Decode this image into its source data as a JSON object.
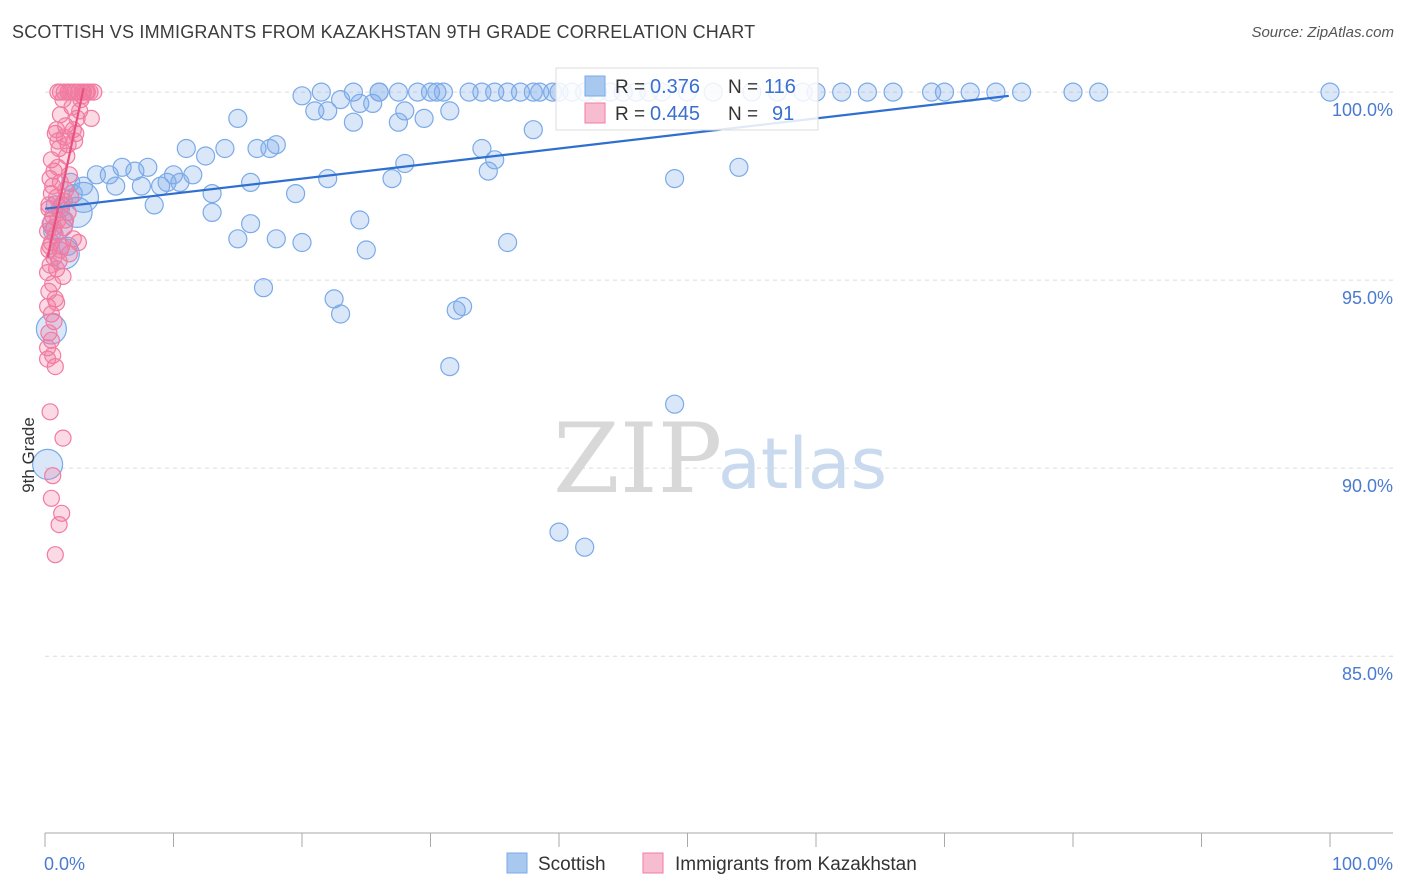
{
  "title": "SCOTTISH VS IMMIGRANTS FROM KAZAKHSTAN 9TH GRADE CORRELATION CHART",
  "source": "Source: ZipAtlas.com",
  "watermark": {
    "zip": "ZIP",
    "atlas": "atlas"
  },
  "chart_data": {
    "type": "scatter",
    "title": "SCOTTISH VS IMMIGRANTS FROM KAZAKHSTAN 9TH GRADE CORRELATION CHART",
    "xlabel": "",
    "ylabel": "9th Grade",
    "xlim": [
      0,
      100
    ],
    "ylim": [
      80.3,
      100.8
    ],
    "x_tick_labels": {
      "left": "0.0%",
      "right": "100.0%"
    },
    "y_ticks": [
      {
        "value": 100,
        "label": "100.0%"
      },
      {
        "value": 95,
        "label": "95.0%"
      },
      {
        "value": 90,
        "label": "90.0%"
      },
      {
        "value": 85,
        "label": "85.0%"
      }
    ],
    "legend_stats": [
      {
        "r_label": "R =",
        "r": "0.376",
        "n_label": "N =",
        "n": "116"
      },
      {
        "r_label": "R =",
        "r": "0.445",
        "n_label": "N =",
        "n": "91"
      }
    ],
    "series": [
      {
        "name": "Scottish",
        "color": "#7aaae8",
        "line_color": "#2f6fd0",
        "trend": {
          "x0": 0,
          "y0": 96.9,
          "x1": 75,
          "y1": 99.9
        },
        "points": [
          [
            21.5,
            100
          ],
          [
            24,
            100
          ],
          [
            26,
            100
          ],
          [
            27.5,
            100
          ],
          [
            29,
            100
          ],
          [
            30,
            100
          ],
          [
            30.5,
            100
          ],
          [
            31,
            100
          ],
          [
            34,
            100
          ],
          [
            35,
            100
          ],
          [
            36,
            100
          ],
          [
            37,
            100
          ],
          [
            38,
            100
          ],
          [
            38.5,
            100
          ],
          [
            39.5,
            100
          ],
          [
            40,
            100
          ],
          [
            41,
            100
          ],
          [
            42,
            100
          ],
          [
            43,
            100
          ],
          [
            44,
            100
          ],
          [
            46,
            100
          ],
          [
            48,
            100
          ],
          [
            52,
            100
          ],
          [
            55,
            100
          ],
          [
            57,
            100
          ],
          [
            59,
            100
          ],
          [
            62,
            100
          ],
          [
            64,
            100
          ],
          [
            66,
            100
          ],
          [
            69,
            100
          ],
          [
            72,
            100
          ],
          [
            74,
            100
          ],
          [
            76,
            100
          ],
          [
            80,
            100
          ],
          [
            82,
            100
          ],
          [
            100,
            100
          ],
          [
            20,
            99.9
          ],
          [
            23,
            99.8
          ],
          [
            24.5,
            99.7
          ],
          [
            25.5,
            99.7
          ],
          [
            21,
            99.5
          ],
          [
            22,
            99.5
          ],
          [
            28,
            99.5
          ],
          [
            29.5,
            99.3
          ],
          [
            31.5,
            99.5
          ],
          [
            24,
            99.2
          ],
          [
            15,
            99.3
          ],
          [
            27.5,
            99.2
          ],
          [
            38,
            99.0
          ],
          [
            18,
            98.6
          ],
          [
            11,
            98.5
          ],
          [
            14,
            98.5
          ],
          [
            16.5,
            98.5
          ],
          [
            17.5,
            98.5
          ],
          [
            12.5,
            98.3
          ],
          [
            34,
            98.5
          ],
          [
            8,
            98.0
          ],
          [
            5,
            97.8
          ],
          [
            6,
            98.0
          ],
          [
            7,
            97.9
          ],
          [
            10,
            97.8
          ],
          [
            11.5,
            97.8
          ],
          [
            2,
            97.6
          ],
          [
            3,
            97.5
          ],
          [
            4,
            97.8
          ],
          [
            5.5,
            97.5
          ],
          [
            7.5,
            97.5
          ],
          [
            9,
            97.5
          ],
          [
            9.5,
            97.6
          ],
          [
            10.5,
            97.6
          ],
          [
            13,
            97.3
          ],
          [
            16,
            97.6
          ],
          [
            22,
            97.7
          ],
          [
            27,
            97.7
          ],
          [
            34.5,
            97.9
          ],
          [
            28,
            98.1
          ],
          [
            35,
            98.2
          ],
          [
            49,
            97.7
          ],
          [
            54,
            98.0
          ],
          [
            19.5,
            97.3
          ],
          [
            8.5,
            97.0
          ],
          [
            2.5,
            96.8
          ],
          [
            3,
            97.2
          ],
          [
            13,
            96.8
          ],
          [
            16,
            96.5
          ],
          [
            24.5,
            96.6
          ],
          [
            1,
            96.5
          ],
          [
            15,
            96.1
          ],
          [
            18,
            96.1
          ],
          [
            20,
            96.0
          ],
          [
            25,
            95.8
          ],
          [
            36,
            96.0
          ],
          [
            1.5,
            95.7
          ],
          [
            17,
            94.8
          ],
          [
            22.5,
            94.5
          ],
          [
            23,
            94.1
          ],
          [
            32.5,
            94.3
          ],
          [
            32,
            94.2
          ],
          [
            0.5,
            93.7
          ],
          [
            31.5,
            92.7
          ],
          [
            49,
            91.7
          ],
          [
            0.2,
            90.1
          ],
          [
            40,
            88.3
          ],
          [
            42,
            87.9
          ],
          [
            0.8,
            97.0
          ],
          [
            1.2,
            96.9
          ],
          [
            2.2,
            97.3
          ],
          [
            0.6,
            96.3
          ],
          [
            1.8,
            95.9
          ],
          [
            26,
            100
          ],
          [
            50,
            100
          ],
          [
            60,
            100
          ],
          [
            70,
            100
          ],
          [
            45,
            100
          ],
          [
            33,
            100
          ],
          [
            47,
            100
          ]
        ],
        "sizes_large": [
          [
            0.5,
            93.7
          ],
          [
            0.2,
            90.1
          ],
          [
            1.5,
            95.7
          ],
          [
            1,
            96.5
          ],
          [
            2.5,
            96.8
          ],
          [
            3,
            97.2
          ]
        ]
      },
      {
        "name": "Immigrants from Kazakhstan",
        "color": "#f27ba0",
        "line_color": "#e8507e",
        "trend": {
          "x0": 0.2,
          "y0": 95.6,
          "x1": 3.0,
          "y1": 100.1
        },
        "points": [
          [
            1,
            100
          ],
          [
            1.2,
            100
          ],
          [
            1.5,
            100
          ],
          [
            1.8,
            100
          ],
          [
            2,
            100
          ],
          [
            2.3,
            100
          ],
          [
            2.6,
            100
          ],
          [
            2.9,
            100
          ],
          [
            3.2,
            100
          ],
          [
            3.5,
            100
          ],
          [
            3.8,
            100
          ],
          [
            1.4,
            99.8
          ],
          [
            2.1,
            99.6
          ],
          [
            2.7,
            99.5
          ],
          [
            1.2,
            99.4
          ],
          [
            2.5,
            99.3
          ],
          [
            1.6,
            99.1
          ],
          [
            2.2,
            99.0
          ],
          [
            0.8,
            98.9
          ],
          [
            1.5,
            98.8
          ],
          [
            1.8,
            98.6
          ],
          [
            1.1,
            98.5
          ],
          [
            0.5,
            98.2
          ],
          [
            1.0,
            98.0
          ],
          [
            0.7,
            97.9
          ],
          [
            0.4,
            97.7
          ],
          [
            1.2,
            97.6
          ],
          [
            1.6,
            97.4
          ],
          [
            0.5,
            97.3
          ],
          [
            0.9,
            97.2
          ],
          [
            1.3,
            97.0
          ],
          [
            0.3,
            96.9
          ],
          [
            1.8,
            96.8
          ],
          [
            0.6,
            96.7
          ],
          [
            1.0,
            96.6
          ],
          [
            0.4,
            96.5
          ],
          [
            1.5,
            96.4
          ],
          [
            0.2,
            96.3
          ],
          [
            0.8,
            96.2
          ],
          [
            2.2,
            96.1
          ],
          [
            0.5,
            96.0
          ],
          [
            1.3,
            95.9
          ],
          [
            0.3,
            95.8
          ],
          [
            1.9,
            95.7
          ],
          [
            0.7,
            95.6
          ],
          [
            1.1,
            95.5
          ],
          [
            0.4,
            95.4
          ],
          [
            0.9,
            95.3
          ],
          [
            0.2,
            95.2
          ],
          [
            1.4,
            95.1
          ],
          [
            0.6,
            94.9
          ],
          [
            0.3,
            94.7
          ],
          [
            0.8,
            94.5
          ],
          [
            0.2,
            94.3
          ],
          [
            0.5,
            94.1
          ],
          [
            0.7,
            93.9
          ],
          [
            0.3,
            93.6
          ],
          [
            0.5,
            93.4
          ],
          [
            0.2,
            93.2
          ],
          [
            0.6,
            93.0
          ],
          [
            0.8,
            92.7
          ],
          [
            0.4,
            91.5
          ],
          [
            1.4,
            90.8
          ],
          [
            0.6,
            89.8
          ],
          [
            0.5,
            89.2
          ],
          [
            1.3,
            88.8
          ],
          [
            1.1,
            88.5
          ],
          [
            0.8,
            87.7
          ],
          [
            3.0,
            100
          ],
          [
            2.4,
            98.9
          ],
          [
            1.7,
            98.3
          ],
          [
            2.8,
            99.8
          ],
          [
            3.6,
            99.3
          ],
          [
            0.9,
            99.0
          ],
          [
            1.5,
            97.1
          ],
          [
            2.6,
            96.0
          ],
          [
            1.2,
            95.8
          ],
          [
            0.6,
            97.5
          ],
          [
            1.9,
            97.8
          ],
          [
            2.3,
            98.7
          ],
          [
            1.0,
            98.7
          ],
          [
            0.3,
            97.0
          ],
          [
            0.7,
            96.4
          ],
          [
            1.6,
            96.6
          ],
          [
            2.0,
            97.2
          ],
          [
            0.4,
            95.9
          ],
          [
            0.9,
            94.4
          ],
          [
            0.2,
            92.9
          ],
          [
            1.8,
            100
          ],
          [
            2.9,
            99.9
          ],
          [
            3.3,
            100
          ]
        ]
      }
    ]
  },
  "legend_bottom": [
    {
      "label": "Scottish"
    },
    {
      "label": "Immigrants from Kazakhstan"
    }
  ]
}
